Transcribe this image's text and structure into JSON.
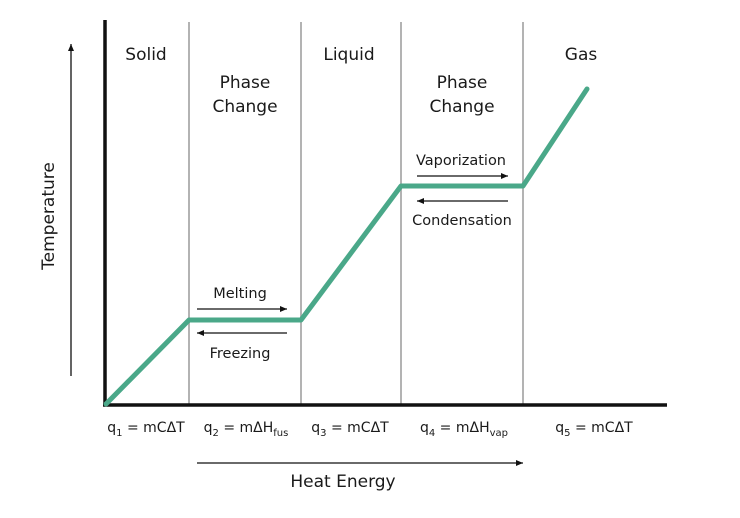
{
  "diagram": {
    "y_axis_label": "Temperature",
    "x_axis_label": "Heat Energy",
    "regions": [
      {
        "lines": [
          "Solid"
        ]
      },
      {
        "lines": [
          "Phase",
          "Change"
        ]
      },
      {
        "lines": [
          "Liquid"
        ]
      },
      {
        "lines": [
          "Phase",
          "Change"
        ]
      },
      {
        "lines": [
          "Gas"
        ]
      }
    ],
    "processes": {
      "melting": "Melting",
      "freezing": "Freezing",
      "vaporization": "Vaporization",
      "condensation": "Condensation"
    },
    "equations": [
      {
        "main": "q",
        "sub1": "1",
        "rest": " = mCΔT",
        "sub2": ""
      },
      {
        "main": "q",
        "sub1": "2",
        "rest": " = mΔH",
        "sub2": "fus"
      },
      {
        "main": "q",
        "sub1": "3",
        "rest": " = mCΔT",
        "sub2": ""
      },
      {
        "main": "q",
        "sub1": "4",
        "rest": " = mΔH",
        "sub2": "vap"
      },
      {
        "main": "q",
        "sub1": "5",
        "rest": " = mCΔT",
        "sub2": ""
      }
    ],
    "colors": {
      "curve": "#4aa889",
      "axis": "#111111",
      "divider": "#b3b3b3",
      "arrow": "#111111"
    }
  }
}
